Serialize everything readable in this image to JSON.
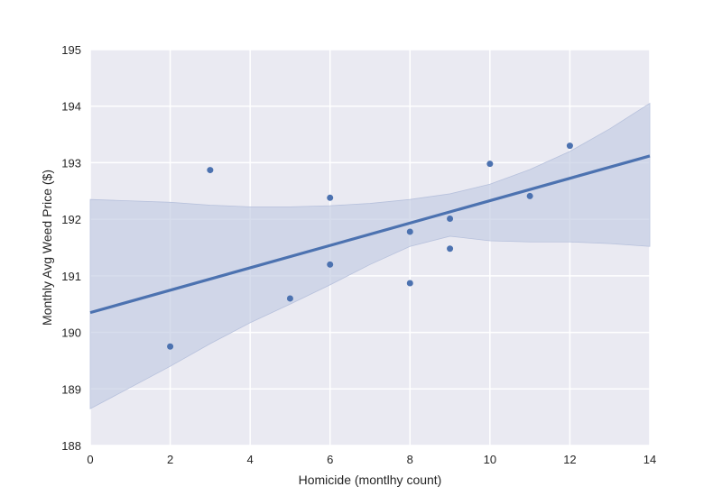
{
  "chart_data": {
    "type": "scatter",
    "xlabel": "Homicide (montlhy count)",
    "ylabel": "Monthly Avg Weed Price ($)",
    "xlim": [
      0,
      14
    ],
    "ylim": [
      188,
      195
    ],
    "x_ticks": [
      0,
      2,
      4,
      6,
      8,
      10,
      12,
      14
    ],
    "y_ticks": [
      188,
      189,
      190,
      191,
      192,
      193,
      194,
      195
    ],
    "grid": true,
    "points": [
      {
        "x": 2,
        "y": 189.75
      },
      {
        "x": 3,
        "y": 192.87
      },
      {
        "x": 5,
        "y": 190.6
      },
      {
        "x": 6,
        "y": 192.38
      },
      {
        "x": 6,
        "y": 191.2
      },
      {
        "x": 8,
        "y": 191.78
      },
      {
        "x": 8,
        "y": 190.87
      },
      {
        "x": 9,
        "y": 192.01
      },
      {
        "x": 9,
        "y": 191.48
      },
      {
        "x": 10,
        "y": 192.98
      },
      {
        "x": 11,
        "y": 192.41
      },
      {
        "x": 12,
        "y": 193.3
      }
    ],
    "regression": {
      "start": {
        "x": 0,
        "y": 190.35
      },
      "end": {
        "x": 14,
        "y": 193.12
      }
    },
    "confidence_band": {
      "x": [
        0,
        2,
        3,
        4,
        5,
        6,
        7,
        8,
        9,
        10,
        11,
        12,
        13,
        14
      ],
      "upper": [
        192.35,
        192.3,
        192.25,
        192.22,
        192.22,
        192.24,
        192.28,
        192.35,
        192.45,
        192.62,
        192.88,
        193.2,
        193.6,
        194.05
      ],
      "lower": [
        188.65,
        189.4,
        189.8,
        190.17,
        190.5,
        190.84,
        191.2,
        191.52,
        191.7,
        191.62,
        191.6,
        191.6,
        191.57,
        191.52
      ]
    },
    "colors": {
      "background": "#eaeaf2",
      "grid": "#ffffff",
      "line": "#4c72b0",
      "points": "#4c72b0",
      "band": "#c2cbe2"
    }
  }
}
